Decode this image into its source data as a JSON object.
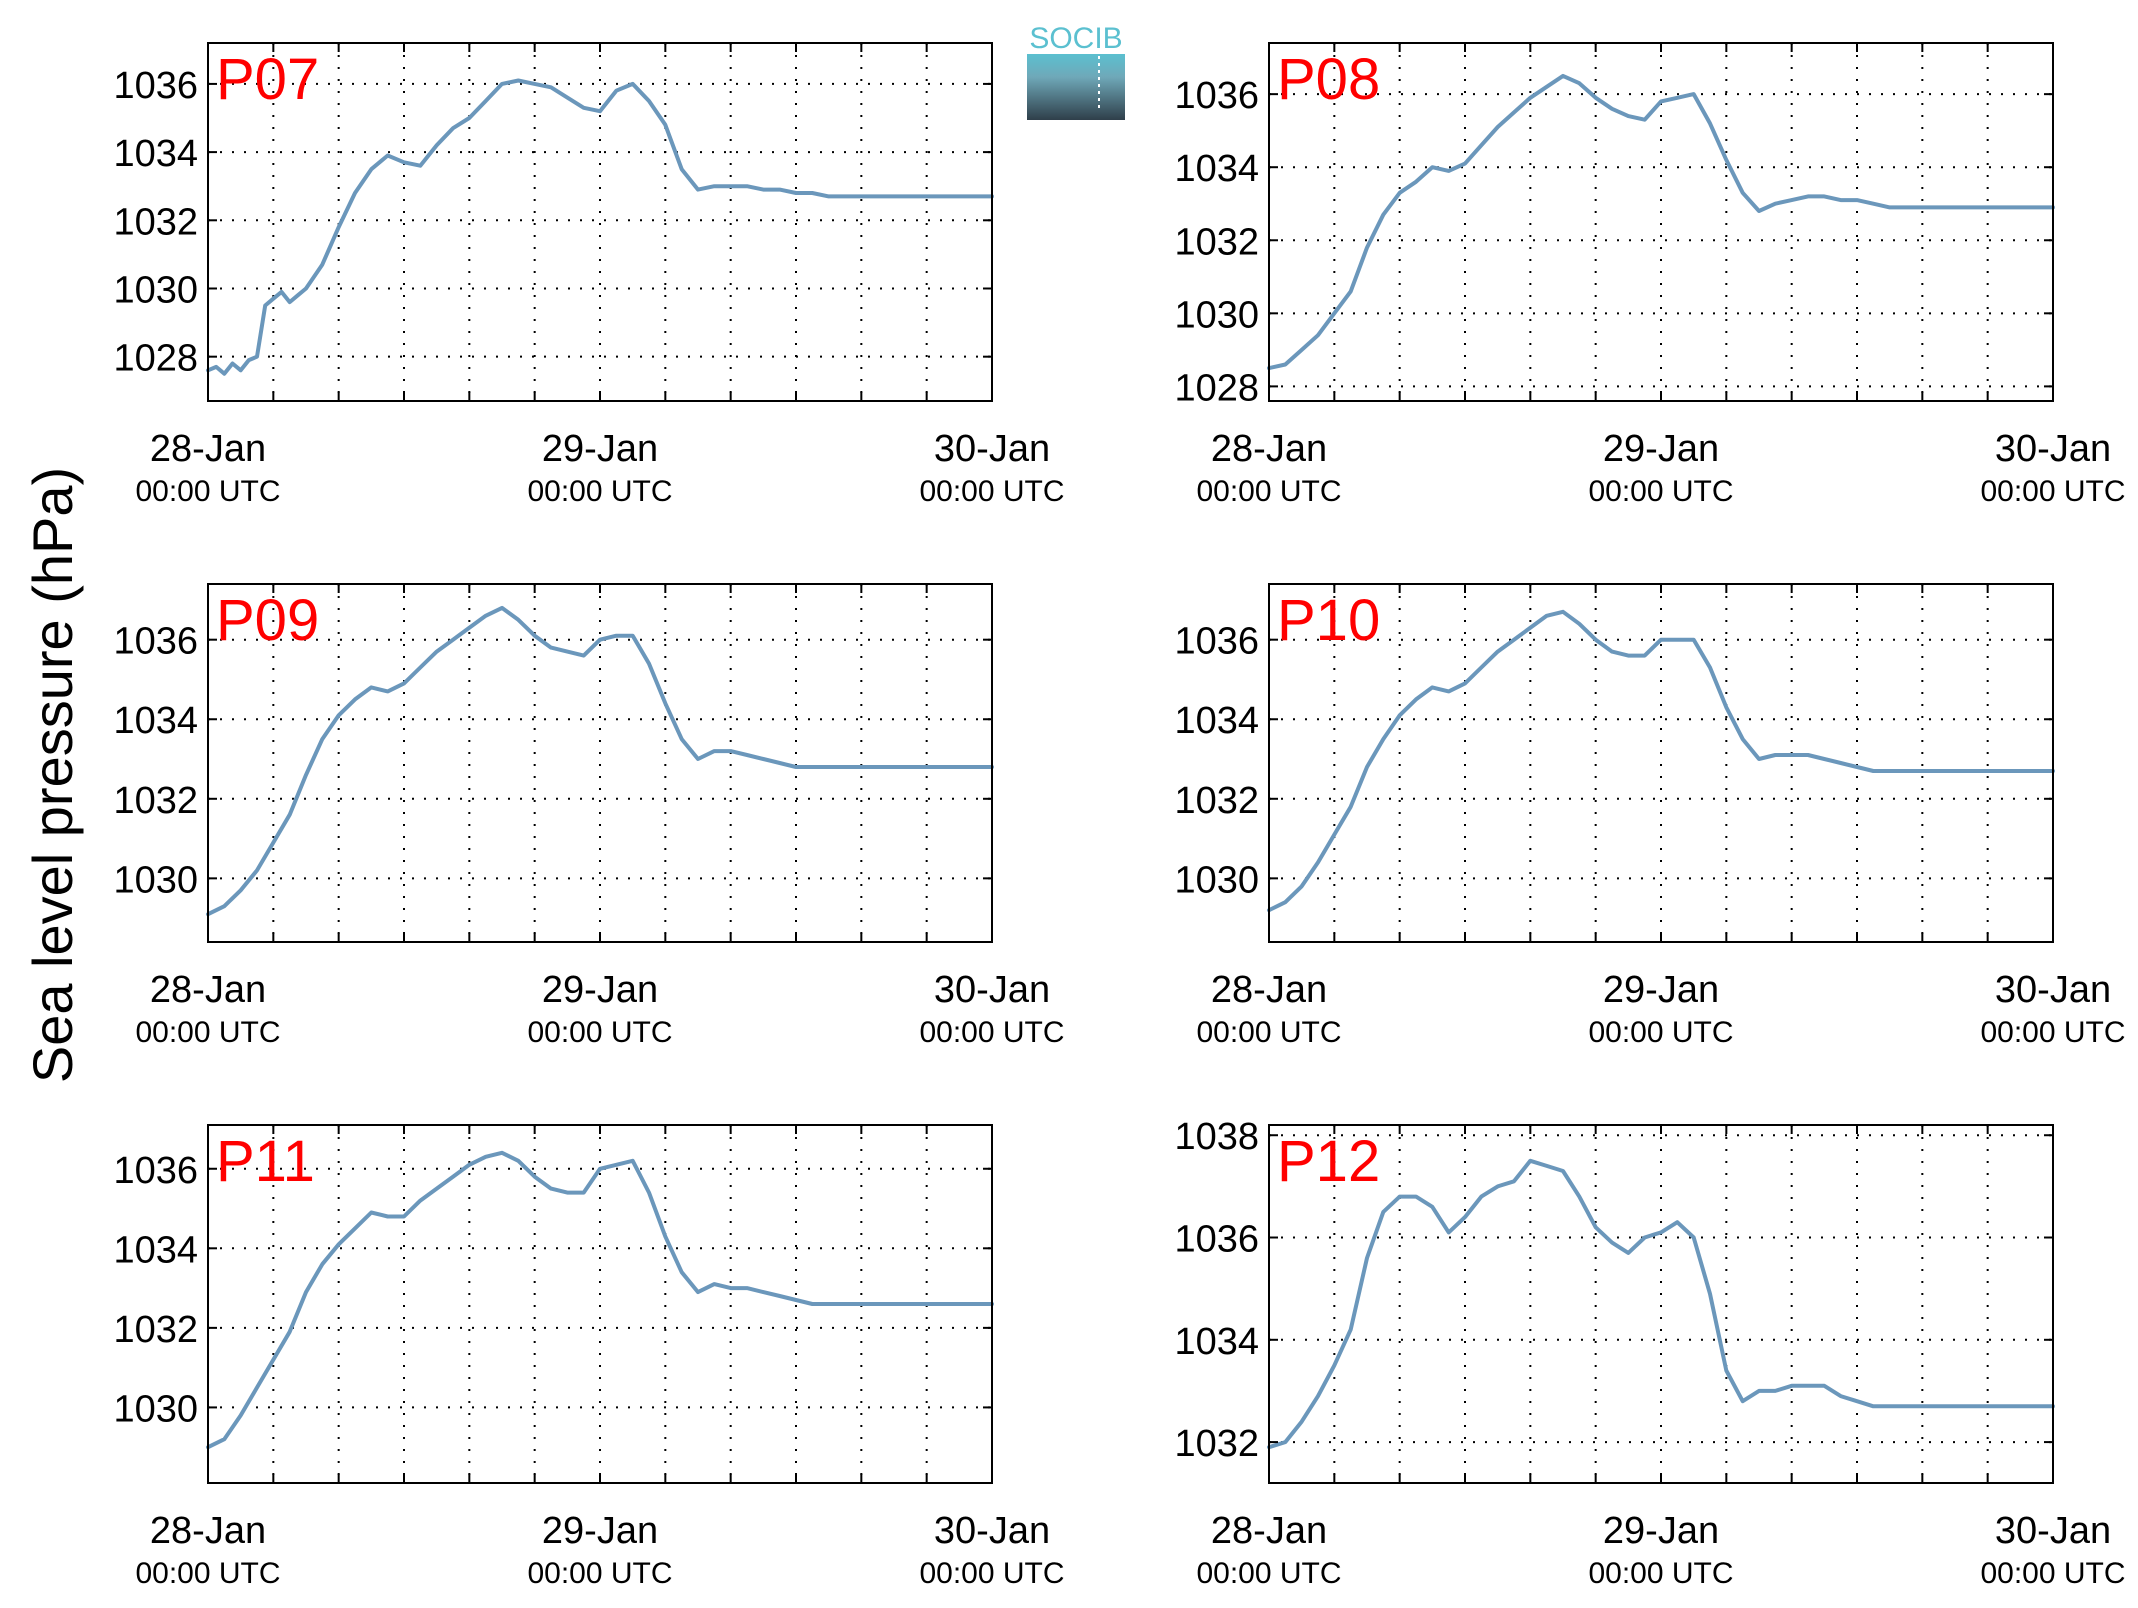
{
  "figure": {
    "ylabel": "Sea level pressure (hPa)",
    "logo_text": "SOCIB",
    "colors": {
      "line": "#6b97bb",
      "panel_label": "#ff0000",
      "axes": "#000000",
      "grid": "#000000",
      "logo_top": "#5bc0d0",
      "logo_bottom": "#2f3f4a"
    }
  },
  "chart_data": [
    {
      "type": "line",
      "title": "P07",
      "x_tick_labels": [
        [
          "28-Jan",
          "00:00 UTC"
        ],
        [
          "29-Jan",
          "00:00 UTC"
        ],
        [
          "30-Jan",
          "00:00 UTC"
        ]
      ],
      "x_ticks_hours": [
        0,
        24,
        48
      ],
      "xlim": [
        0,
        48
      ],
      "ylim": [
        1026.7,
        1037.2
      ],
      "y_ticks": [
        1028,
        1030,
        1032,
        1034,
        1036
      ],
      "grid": true,
      "series": [
        {
          "x": [
            0,
            0.5,
            1,
            1.5,
            2,
            2.5,
            3,
            3.5,
            4,
            4.5,
            5,
            5.5,
            6,
            7,
            8,
            9,
            10,
            11,
            12,
            13,
            14,
            15,
            16,
            17,
            18,
            19,
            20,
            21,
            22,
            23,
            24,
            25,
            26,
            27,
            28,
            29,
            30,
            31,
            32,
            33,
            34,
            35,
            36,
            37,
            38,
            39,
            40,
            41,
            42,
            43,
            44,
            45,
            46,
            47,
            48
          ],
          "y": [
            1027.6,
            1027.7,
            1027.5,
            1027.8,
            1027.6,
            1027.9,
            1028.0,
            1029.5,
            1029.7,
            1029.9,
            1029.6,
            1029.8,
            1030.0,
            1030.7,
            1031.8,
            1032.8,
            1033.5,
            1033.9,
            1033.7,
            1033.6,
            1034.2,
            1034.7,
            1035.0,
            1035.5,
            1036.0,
            1036.1,
            1036.0,
            1035.9,
            1035.6,
            1035.3,
            1035.2,
            1035.8,
            1036.0,
            1035.5,
            1034.8,
            1033.5,
            1032.9,
            1033.0,
            1033.0,
            1033.0,
            1032.9,
            1032.9,
            1032.8,
            1032.8,
            1032.7,
            1032.7,
            1032.7,
            1032.7,
            1032.7,
            1032.7,
            1032.7,
            1032.7,
            1032.7,
            1032.7,
            1032.7
          ]
        }
      ]
    },
    {
      "type": "line",
      "title": "P08",
      "x_tick_labels": [
        [
          "28-Jan",
          "00:00 UTC"
        ],
        [
          "29-Jan",
          "00:00 UTC"
        ],
        [
          "30-Jan",
          "00:00 UTC"
        ]
      ],
      "x_ticks_hours": [
        0,
        24,
        48
      ],
      "xlim": [
        0,
        48
      ],
      "ylim": [
        1027.6,
        1037.4
      ],
      "y_ticks": [
        1028,
        1030,
        1032,
        1034,
        1036
      ],
      "grid": true,
      "series": [
        {
          "x": [
            0,
            1,
            2,
            3,
            4,
            5,
            6,
            7,
            8,
            9,
            10,
            11,
            12,
            13,
            14,
            15,
            16,
            17,
            18,
            19,
            20,
            21,
            22,
            23,
            24,
            25,
            26,
            27,
            28,
            29,
            30,
            31,
            32,
            33,
            34,
            35,
            36,
            37,
            38,
            39,
            40,
            41,
            42,
            43,
            44,
            45,
            46,
            47,
            48
          ],
          "y": [
            1028.5,
            1028.6,
            1029.0,
            1029.4,
            1030.0,
            1030.6,
            1031.8,
            1032.7,
            1033.3,
            1033.6,
            1034.0,
            1033.9,
            1034.1,
            1034.6,
            1035.1,
            1035.5,
            1035.9,
            1036.2,
            1036.5,
            1036.3,
            1035.9,
            1035.6,
            1035.4,
            1035.3,
            1035.8,
            1035.9,
            1036.0,
            1035.2,
            1034.2,
            1033.3,
            1032.8,
            1033.0,
            1033.1,
            1033.2,
            1033.2,
            1033.1,
            1033.1,
            1033.0,
            1032.9,
            1032.9,
            1032.9,
            1032.9,
            1032.9,
            1032.9,
            1032.9,
            1032.9,
            1032.9,
            1032.9,
            1032.9
          ]
        }
      ]
    },
    {
      "type": "line",
      "title": "P09",
      "x_tick_labels": [
        [
          "28-Jan",
          "00:00 UTC"
        ],
        [
          "29-Jan",
          "00:00 UTC"
        ],
        [
          "30-Jan",
          "00:00 UTC"
        ]
      ],
      "x_ticks_hours": [
        0,
        24,
        48
      ],
      "xlim": [
        0,
        48
      ],
      "ylim": [
        1028.4,
        1037.4
      ],
      "y_ticks": [
        1030,
        1032,
        1034,
        1036
      ],
      "grid": true,
      "series": [
        {
          "x": [
            0,
            1,
            2,
            3,
            4,
            5,
            6,
            7,
            8,
            9,
            10,
            11,
            12,
            13,
            14,
            15,
            16,
            17,
            18,
            19,
            20,
            21,
            22,
            23,
            24,
            25,
            26,
            27,
            28,
            29,
            30,
            31,
            32,
            33,
            34,
            35,
            36,
            37,
            38,
            39,
            40,
            41,
            42,
            43,
            44,
            45,
            46,
            47,
            48
          ],
          "y": [
            1029.1,
            1029.3,
            1029.7,
            1030.2,
            1030.9,
            1031.6,
            1032.6,
            1033.5,
            1034.1,
            1034.5,
            1034.8,
            1034.7,
            1034.9,
            1035.3,
            1035.7,
            1036.0,
            1036.3,
            1036.6,
            1036.8,
            1036.5,
            1036.1,
            1035.8,
            1035.7,
            1035.6,
            1036.0,
            1036.1,
            1036.1,
            1035.4,
            1034.4,
            1033.5,
            1033.0,
            1033.2,
            1033.2,
            1033.1,
            1033.0,
            1032.9,
            1032.8,
            1032.8,
            1032.8,
            1032.8,
            1032.8,
            1032.8,
            1032.8,
            1032.8,
            1032.8,
            1032.8,
            1032.8,
            1032.8,
            1032.8
          ]
        }
      ]
    },
    {
      "type": "line",
      "title": "P10",
      "x_tick_labels": [
        [
          "28-Jan",
          "00:00 UTC"
        ],
        [
          "29-Jan",
          "00:00 UTC"
        ],
        [
          "30-Jan",
          "00:00 UTC"
        ]
      ],
      "x_ticks_hours": [
        0,
        24,
        48
      ],
      "xlim": [
        0,
        48
      ],
      "ylim": [
        1028.4,
        1037.4
      ],
      "y_ticks": [
        1030,
        1032,
        1034,
        1036
      ],
      "grid": true,
      "series": [
        {
          "x": [
            0,
            1,
            2,
            3,
            4,
            5,
            6,
            7,
            8,
            9,
            10,
            11,
            12,
            13,
            14,
            15,
            16,
            17,
            18,
            19,
            20,
            21,
            22,
            23,
            24,
            25,
            26,
            27,
            28,
            29,
            30,
            31,
            32,
            33,
            34,
            35,
            36,
            37,
            38,
            39,
            40,
            41,
            42,
            43,
            44,
            45,
            46,
            47,
            48
          ],
          "y": [
            1029.2,
            1029.4,
            1029.8,
            1030.4,
            1031.1,
            1031.8,
            1032.8,
            1033.5,
            1034.1,
            1034.5,
            1034.8,
            1034.7,
            1034.9,
            1035.3,
            1035.7,
            1036.0,
            1036.3,
            1036.6,
            1036.7,
            1036.4,
            1036.0,
            1035.7,
            1035.6,
            1035.6,
            1036.0,
            1036.0,
            1036.0,
            1035.3,
            1034.3,
            1033.5,
            1033.0,
            1033.1,
            1033.1,
            1033.1,
            1033.0,
            1032.9,
            1032.8,
            1032.7,
            1032.7,
            1032.7,
            1032.7,
            1032.7,
            1032.7,
            1032.7,
            1032.7,
            1032.7,
            1032.7,
            1032.7,
            1032.7
          ]
        }
      ]
    },
    {
      "type": "line",
      "title": "P11",
      "x_tick_labels": [
        [
          "28-Jan",
          "00:00 UTC"
        ],
        [
          "29-Jan",
          "00:00 UTC"
        ],
        [
          "30-Jan",
          "00:00 UTC"
        ]
      ],
      "x_ticks_hours": [
        0,
        24,
        48
      ],
      "xlim": [
        0,
        48
      ],
      "ylim": [
        1028.1,
        1037.1
      ],
      "y_ticks": [
        1030,
        1032,
        1034,
        1036
      ],
      "grid": true,
      "series": [
        {
          "x": [
            0,
            1,
            2,
            3,
            4,
            5,
            6,
            7,
            8,
            9,
            10,
            11,
            12,
            13,
            14,
            15,
            16,
            17,
            18,
            19,
            20,
            21,
            22,
            23,
            24,
            25,
            26,
            27,
            28,
            29,
            30,
            31,
            32,
            33,
            34,
            35,
            36,
            37,
            38,
            39,
            40,
            41,
            42,
            43,
            44,
            45,
            46,
            47,
            48
          ],
          "y": [
            1029.0,
            1029.2,
            1029.8,
            1030.5,
            1031.2,
            1031.9,
            1032.9,
            1033.6,
            1034.1,
            1034.5,
            1034.9,
            1034.8,
            1034.8,
            1035.2,
            1035.5,
            1035.8,
            1036.1,
            1036.3,
            1036.4,
            1036.2,
            1035.8,
            1035.5,
            1035.4,
            1035.4,
            1036.0,
            1036.1,
            1036.2,
            1035.4,
            1034.3,
            1033.4,
            1032.9,
            1033.1,
            1033.0,
            1033.0,
            1032.9,
            1032.8,
            1032.7,
            1032.6,
            1032.6,
            1032.6,
            1032.6,
            1032.6,
            1032.6,
            1032.6,
            1032.6,
            1032.6,
            1032.6,
            1032.6,
            1032.6
          ]
        }
      ]
    },
    {
      "type": "line",
      "title": "P12",
      "x_tick_labels": [
        [
          "28-Jan",
          "00:00 UTC"
        ],
        [
          "29-Jan",
          "00:00 UTC"
        ],
        [
          "30-Jan",
          "00:00 UTC"
        ]
      ],
      "x_ticks_hours": [
        0,
        24,
        48
      ],
      "xlim": [
        0,
        48
      ],
      "ylim": [
        1031.2,
        1038.2
      ],
      "y_ticks": [
        1032,
        1034,
        1036,
        1038
      ],
      "grid": true,
      "series": [
        {
          "x": [
            0,
            1,
            2,
            3,
            4,
            5,
            6,
            7,
            8,
            9,
            10,
            11,
            12,
            13,
            14,
            15,
            16,
            17,
            18,
            19,
            20,
            21,
            22,
            23,
            24,
            25,
            26,
            27,
            28,
            29,
            30,
            31,
            32,
            33,
            34,
            35,
            36,
            37,
            38,
            39,
            40,
            41,
            42,
            43,
            44,
            45,
            46,
            47,
            48
          ],
          "y": [
            1031.9,
            1032.0,
            1032.4,
            1032.9,
            1033.5,
            1034.2,
            1035.6,
            1036.5,
            1036.8,
            1036.8,
            1036.6,
            1036.1,
            1036.4,
            1036.8,
            1037.0,
            1037.1,
            1037.5,
            1037.4,
            1037.3,
            1036.8,
            1036.2,
            1035.9,
            1035.7,
            1036.0,
            1036.1,
            1036.3,
            1036.0,
            1034.9,
            1033.4,
            1032.8,
            1033.0,
            1033.0,
            1033.1,
            1033.1,
            1033.1,
            1032.9,
            1032.8,
            1032.7,
            1032.7,
            1032.7,
            1032.7,
            1032.7,
            1032.7,
            1032.7,
            1032.7,
            1032.7,
            1032.7,
            1032.7,
            1032.7
          ]
        }
      ]
    }
  ]
}
